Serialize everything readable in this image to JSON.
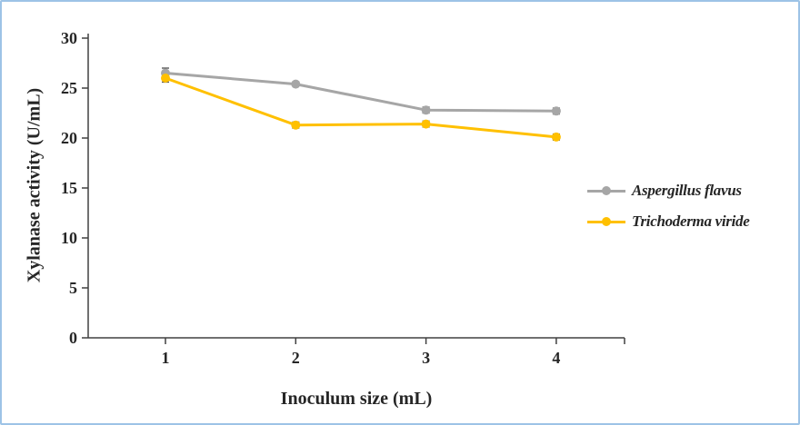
{
  "figure": {
    "border_color": "#9DC3E6",
    "background": "#FFFFFF",
    "axis_color": "#404040",
    "text_color": "#262626",
    "error_bar_color": "#595959"
  },
  "chart_data": {
    "type": "line",
    "title": "",
    "xlabel": "Inoculum size (mL)",
    "ylabel": "Xylanase activity (U/mL)",
    "x": [
      1,
      2,
      3,
      4
    ],
    "x_tick_labels": [
      "1",
      "2",
      "3",
      "4"
    ],
    "ylim": [
      0,
      30
    ],
    "y_ticks": [
      0,
      5,
      10,
      15,
      20,
      25,
      30
    ],
    "grid": false,
    "legend_position": "right",
    "series": [
      {
        "name": "Aspergillus flavus",
        "color": "#A6A6A6",
        "marker": "circle",
        "values": [
          26.5,
          25.4,
          22.8,
          22.7
        ],
        "error": [
          0.5,
          0.2,
          0.3,
          0.3
        ]
      },
      {
        "name": "Trichoderma viride",
        "color": "#FFC000",
        "marker": "circle",
        "values": [
          26.0,
          21.3,
          21.4,
          20.1
        ],
        "error": [
          0.4,
          0.3,
          0.3,
          0.3
        ]
      }
    ]
  }
}
